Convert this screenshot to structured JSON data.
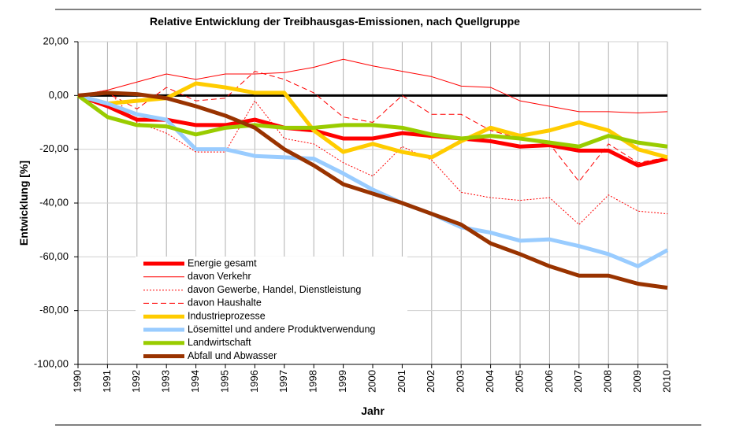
{
  "chart_data": {
    "type": "line",
    "title": "Relative Entwicklung der Treibhausgas-Emissionen, nach Quellgruppe",
    "x_label": "Jahr",
    "y_label": "Entwicklung [%]",
    "categories": [
      "1990",
      "1991",
      "1992",
      "1993",
      "1994",
      "1995",
      "1996",
      "1997",
      "1998",
      "1999",
      "2000",
      "2001",
      "2002",
      "2003",
      "2004",
      "2005",
      "2006",
      "2007",
      "2008",
      "2009",
      "2010"
    ],
    "ylim": [
      -100,
      20
    ],
    "yticks": [
      {
        "value": 20,
        "label": "20,00"
      },
      {
        "value": 0,
        "label": "0,00"
      },
      {
        "value": -20,
        "label": "-20,00"
      },
      {
        "value": -40,
        "label": "-40,00"
      },
      {
        "value": -60,
        "label": "-60,00"
      },
      {
        "value": -80,
        "label": "-80,00"
      },
      {
        "value": -100,
        "label": "-100,00"
      }
    ],
    "grid": true,
    "series": [
      {
        "name": "Energie gesamt",
        "color": "#ff0000",
        "style": "thick",
        "values": [
          0,
          -4,
          -9,
          -9,
          -11,
          -11,
          -9,
          -12,
          -13,
          -16,
          -16,
          -14,
          -15,
          -16,
          -17,
          -19,
          -18.5,
          -20.5,
          -20.5,
          -26,
          -23.5
        ]
      },
      {
        "name": "davon Verkehr",
        "color": "#ff0000",
        "style": "thin",
        "values": [
          0,
          2,
          5,
          8,
          6,
          8,
          8,
          8.5,
          10.5,
          13.5,
          11,
          9,
          7,
          3.5,
          3,
          -2,
          -4,
          -6,
          -6,
          -6.5,
          -6
        ]
      },
      {
        "name": "davon Gewerbe, Handel, Dienstleistung",
        "color": "#ff0000",
        "style": "thin-dotted",
        "values": [
          0,
          2,
          -10,
          -14,
          -21,
          -21,
          -2,
          -16,
          -18,
          -25,
          -30,
          -19,
          -24,
          -36,
          -38,
          -39,
          -38,
          -48,
          -37,
          -43,
          -44
        ]
      },
      {
        "name": "davon Haushalte",
        "color": "#ff0000",
        "style": "thin-dashed",
        "values": [
          0,
          1,
          -5,
          3,
          -2,
          -1,
          9,
          6,
          1,
          -8,
          -10,
          0,
          -7,
          -7,
          -13,
          -16,
          -18,
          -32,
          -18,
          -25,
          -23
        ]
      },
      {
        "name": "Industrieprozesse",
        "color": "#ffcc00",
        "style": "thick",
        "values": [
          0,
          -3,
          -2,
          -1,
          4.5,
          3,
          1,
          1,
          -13,
          -21,
          -18,
          -21,
          -23,
          -17,
          -12,
          -15,
          -13,
          -10,
          -13,
          -20,
          -23
        ]
      },
      {
        "name": "Lösemittel und andere Produktverwendung",
        "color": "#99ccff",
        "style": "thick",
        "values": [
          0,
          -3,
          -7,
          -9,
          -20,
          -20,
          -22.5,
          -23,
          -23.5,
          -29,
          -35,
          -40,
          -44,
          -49,
          -51,
          -54,
          -53.5,
          -56,
          -59,
          -63.5,
          -57.5
        ]
      },
      {
        "name": "Landwirtschaft",
        "color": "#99cc00",
        "style": "thick",
        "values": [
          0,
          -8,
          -11,
          -11.5,
          -14.5,
          -12,
          -11,
          -12,
          -12,
          -11,
          -11,
          -12,
          -14.5,
          -16,
          -15,
          -16,
          -17.5,
          -19,
          -15,
          -17.5,
          -19
        ]
      },
      {
        "name": "Abfall und Abwasser",
        "color": "#993300",
        "style": "thick",
        "values": [
          0,
          1,
          0.5,
          -1,
          -4,
          -7.5,
          -12,
          -20,
          -26,
          -33,
          -36.5,
          -40,
          -44,
          -48,
          -55,
          -59,
          -63.5,
          -67,
          -67,
          -70,
          -71.5
        ]
      }
    ]
  }
}
